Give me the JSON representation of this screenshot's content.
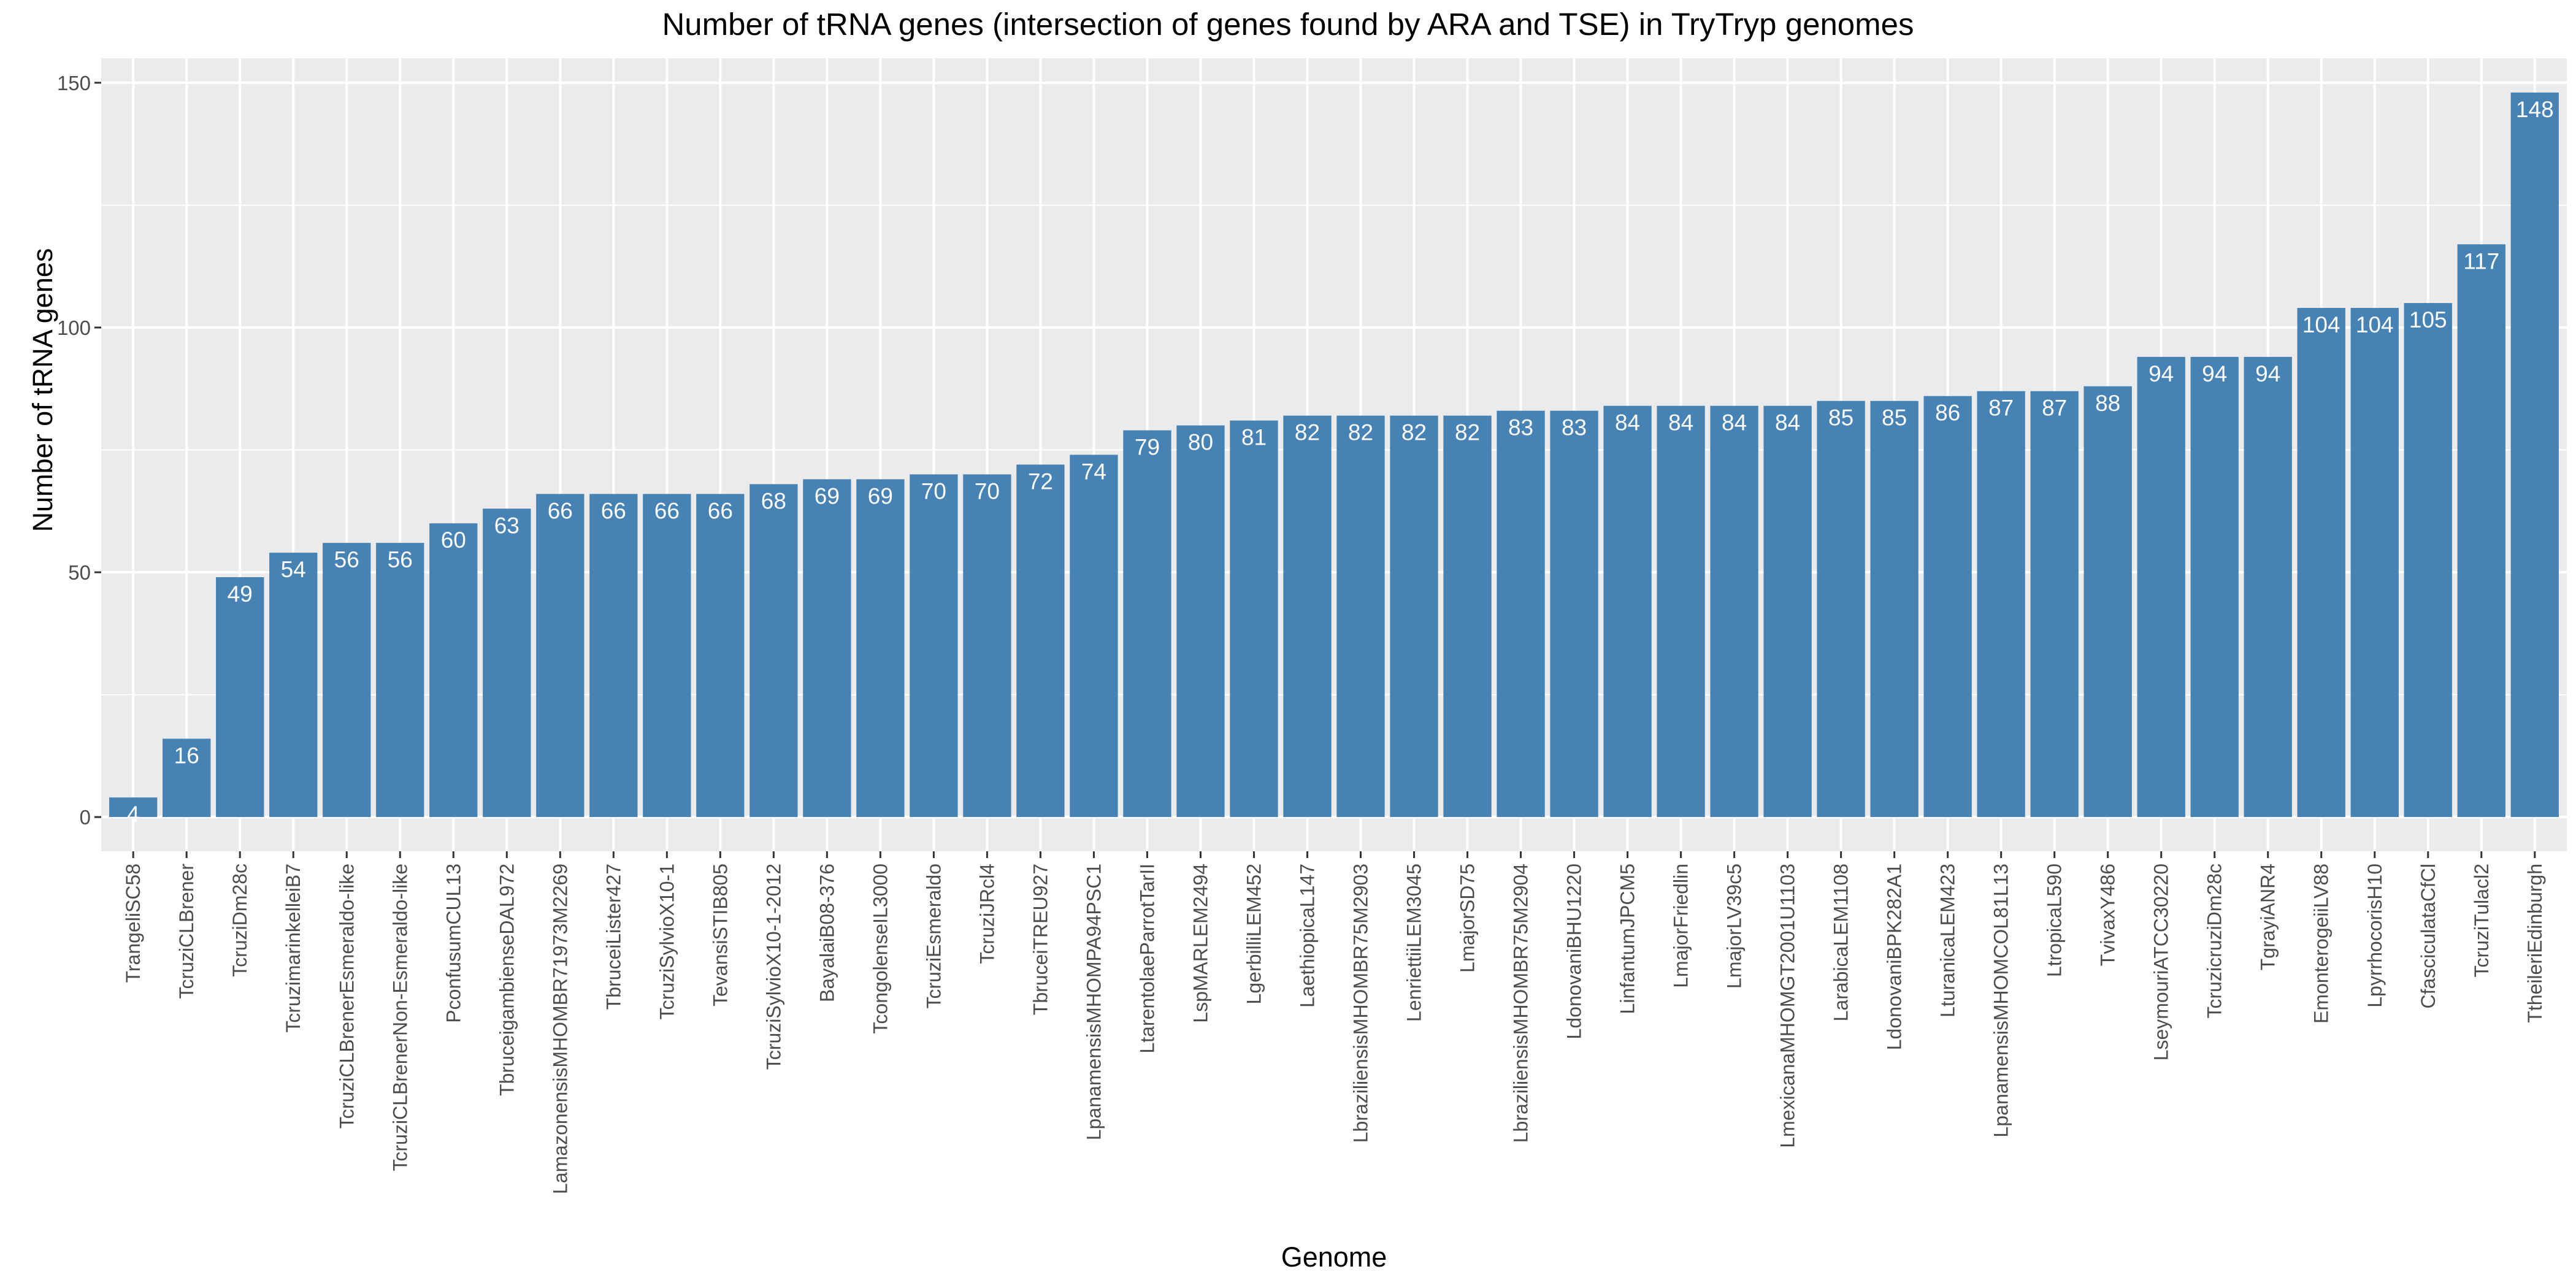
{
  "chart_data": {
    "type": "bar",
    "title": "Number of tRNA genes (intersection of genes found by ARA and TSE) in TryTryp genomes",
    "xlabel": "Genome",
    "ylabel": "Number of tRNA genes",
    "ylim": [
      -7,
      155
    ],
    "yticks": [
      0,
      50,
      100,
      150
    ],
    "grid": true,
    "bar_color": "#4682B4",
    "panel_color": "#EBEBEB",
    "categories": [
      "TrangeliSC58",
      "TcruziCLBrener",
      "TcruziDm28c",
      "TcruzimarinkelleiB7",
      "TcruziCLBrenerEsmeraldo-like",
      "TcruziCLBrenerNon-Esmeraldo-like",
      "PconfusumCUL13",
      "TbruceigambienseDAL972",
      "LamazonensisMHOMBR71973M2269",
      "TbruceiLister427",
      "TcruziSylvioX10-1",
      "TevansiSTIB805",
      "TcruziSylvioX10-1-2012",
      "BayalaiB08-376",
      "TcongolenseIL3000",
      "TcruziEsmeraldo",
      "TcruziJRcl4",
      "TbruceiTREU927",
      "LpanamensisMHOMPA94PSC1",
      "LtarentolaeParrotTarII",
      "LspMARLEM2494",
      "LgerbilliLEM452",
      "LaethiopicaL147",
      "LbraziliensisMHOMBR75M2903",
      "LenriettiiLEM3045",
      "LmajorSD75",
      "LbraziliensisMHOMBR75M2904",
      "LdonovaniBHU1220",
      "LinfantumJPCM5",
      "LmajorFriedlin",
      "LmajorLV39c5",
      "LmexicanaMHOMGT2001U1103",
      "LarabicaLEM1108",
      "LdonovaniBPK282A1",
      "LturanicaLEM423",
      "LpanamensisMHOMCOL81L13",
      "LtropicaL590",
      "TvivaxY486",
      "LseymouriATCC30220",
      "TcruzicruziDm28c",
      "TgrayiANR4",
      "EmonterogeiiLV88",
      "LpyrrhocorisH10",
      "CfasciculataCfCl",
      "TcruziTulacl2",
      "TtheileriEdinburgh"
    ],
    "values": [
      4,
      16,
      49,
      54,
      56,
      56,
      60,
      63,
      66,
      66,
      66,
      66,
      68,
      69,
      69,
      70,
      70,
      72,
      74,
      79,
      80,
      81,
      82,
      82,
      82,
      82,
      83,
      83,
      84,
      84,
      84,
      84,
      85,
      85,
      86,
      87,
      87,
      88,
      94,
      94,
      94,
      104,
      104,
      105,
      117,
      148
    ]
  }
}
